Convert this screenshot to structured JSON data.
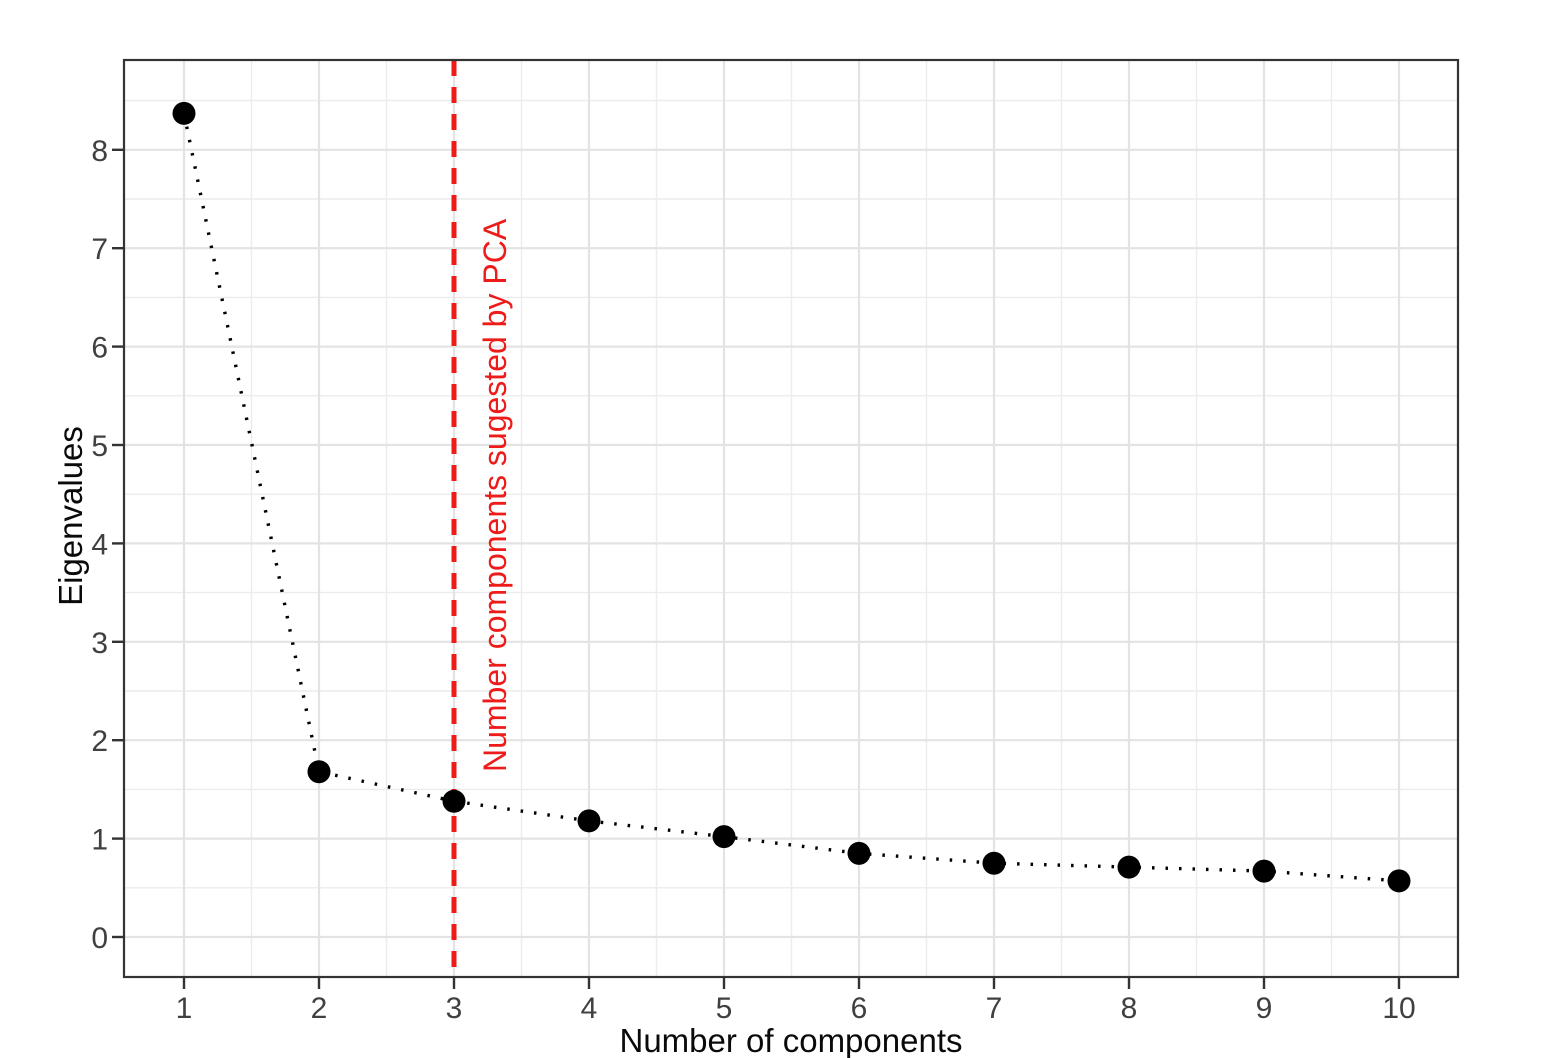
{
  "figure": {
    "background": "#FFFFFF",
    "panel_border_color": "#333333",
    "grid_major_color": "#E3E3E3",
    "grid_minor_color": "#ECECEC",
    "tick_label_color": "#404040",
    "axis_title_color": "#0A0A0A"
  },
  "chart_data": {
    "type": "scatter",
    "title": "",
    "xlabel": "Number of components",
    "ylabel": "Eigenvalues",
    "x": [
      1,
      2,
      3,
      4,
      5,
      6,
      7,
      8,
      9,
      10
    ],
    "values": [
      8.37,
      1.68,
      1.38,
      1.18,
      1.02,
      0.85,
      0.75,
      0.71,
      0.67,
      0.57
    ],
    "xlim": [
      0.56,
      10.44
    ],
    "ylim": [
      -0.41,
      8.91
    ],
    "x_ticks": [
      1,
      2,
      3,
      4,
      5,
      6,
      7,
      8,
      9,
      10
    ],
    "y_ticks": [
      0,
      1,
      2,
      3,
      4,
      5,
      6,
      7,
      8
    ],
    "x_minor_ticks": [
      1.5,
      2.5,
      3.5,
      4.5,
      5.5,
      6.5,
      7.5,
      8.5,
      9.5
    ],
    "y_minor_ticks": [
      0.5,
      1.5,
      2.5,
      3.5,
      4.5,
      5.5,
      6.5,
      7.5,
      8.5
    ],
    "grid": "major+minor",
    "legend": "none",
    "line_style": "dotted",
    "marker": {
      "shape": "circle",
      "color": "#000000",
      "radius_px": 11.5
    },
    "line_color": "#000000",
    "annotation_vline": {
      "x": 3,
      "color": "#EE1B1B",
      "style": "dashed",
      "label": "Number components sugested by PCA"
    }
  }
}
